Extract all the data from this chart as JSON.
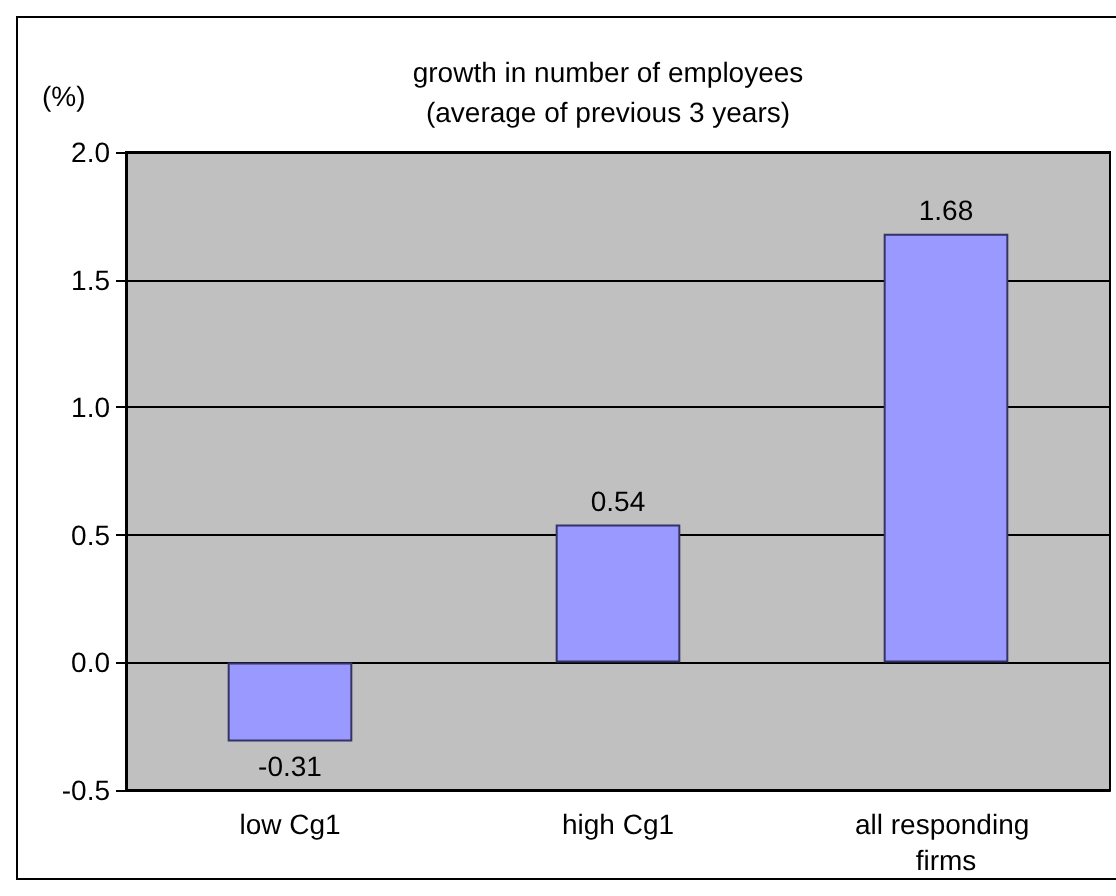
{
  "chart_data": {
    "type": "bar",
    "title": "growth in number of employees\n(average of previous 3 years)",
    "ylabel": "(%)",
    "categories": [
      "low Cg1",
      "high Cg1",
      "all responding firms"
    ],
    "values": [
      -0.31,
      0.54,
      1.68
    ],
    "color": "#9999ff",
    "ylim": [
      -0.5,
      2.0
    ],
    "yticks": [
      -0.5,
      {
        "value": 0,
        "label": "0.0"
      },
      0.5,
      {
        "value": 1,
        "label": "1.0"
      },
      1.5,
      {
        "value": 2,
        "label": "2.0"
      }
    ],
    "grid": "y",
    "data_labels": true
  }
}
